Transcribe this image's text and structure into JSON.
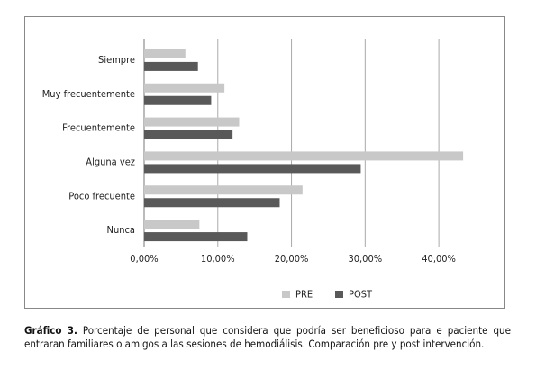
{
  "chart_data": {
    "type": "hbar",
    "categories": [
      "Siempre",
      "Muy frecuentemente",
      "Frecuentemente",
      "Alguna vez",
      "Poco frecuente",
      "Nunca"
    ],
    "series": [
      {
        "name": "PRE",
        "color": "#c8c8c8",
        "values": [
          5.6,
          10.9,
          12.9,
          43.3,
          21.5,
          7.5
        ]
      },
      {
        "name": "POST",
        "color": "#595959",
        "values": [
          7.3,
          9.1,
          12.0,
          29.4,
          18.4,
          14.0
        ]
      }
    ],
    "xlim": [
      0,
      45
    ],
    "xticks": [
      {
        "value": 0,
        "label": "0,00%"
      },
      {
        "value": 10,
        "label": "10,00%"
      },
      {
        "value": 20,
        "label": "20,00%"
      },
      {
        "value": 30,
        "label": "30,00%"
      },
      {
        "value": 40,
        "label": "40,00%"
      }
    ],
    "grid": true,
    "legend": "bottom"
  },
  "caption": {
    "label": "Gráfico 3.",
    "text": "Porcentaje de personal que considera que podría ser beneficioso para e paciente que entraran familiares o amigos a las sesiones de hemodiálisis. Comparación pre y post intervención."
  }
}
